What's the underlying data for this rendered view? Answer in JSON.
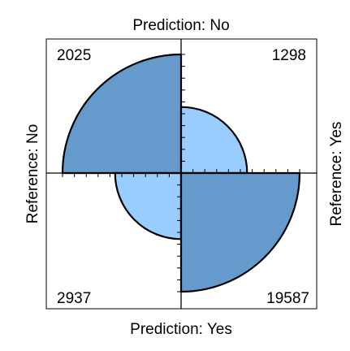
{
  "chart_data": {
    "type": "fourfold",
    "labels": {
      "top": "Prediction: No",
      "bottom": "Prediction: Yes",
      "left": "Reference: No",
      "right": "Reference: Yes"
    },
    "cells": [
      {
        "key": "no_no",
        "quadrant": "top-left",
        "value": 2025,
        "value_label": "2025",
        "color": "#6699CC"
      },
      {
        "key": "no_yes",
        "quadrant": "top-right",
        "value": 1298,
        "value_label": "1298",
        "color": "#99CCFF"
      },
      {
        "key": "yes_no",
        "quadrant": "bottom-left",
        "value": 2937,
        "value_label": "2937",
        "color": "#99CCFF"
      },
      {
        "key": "yes_yes",
        "quadrant": "bottom-right",
        "value": 19587,
        "value_label": "19587",
        "color": "#6699CC"
      }
    ],
    "standardized": "rows and columns scaled to equal totals",
    "axis_ticks": true
  }
}
